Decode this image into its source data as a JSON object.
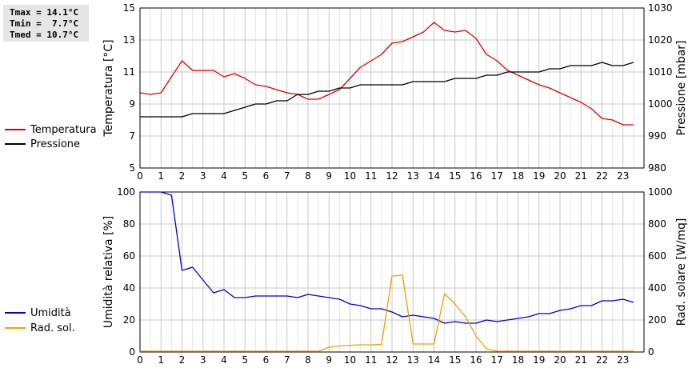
{
  "stats": {
    "tmax": "Tmax = 14.1°C",
    "tmin": "Tmin =  7.7°C",
    "tmed": "Tmed = 10.7°C"
  },
  "colors": {
    "temperature": "#dd0000",
    "pressure": "#000000",
    "humidity": "#0000cc",
    "radiation": "#f0a000",
    "grid": "#c8c8c8"
  },
  "chart_data": [
    {
      "type": "line",
      "xlim": [
        0,
        24
      ],
      "x_ticks": [
        "0",
        "1",
        "2",
        "3",
        "4",
        "5",
        "6",
        "7",
        "8",
        "9",
        "10",
        "11",
        "12",
        "13",
        "14",
        "15",
        "16",
        "17",
        "18",
        "19",
        "20",
        "21",
        "22",
        "23"
      ],
      "ylabel": "Temperatura [°C]",
      "ylim": [
        5,
        15
      ],
      "y_ticks": [
        "5",
        "7",
        "9",
        "11",
        "13",
        "15"
      ],
      "y2label": "Pressione [mbar]",
      "y2lim": [
        980,
        1030
      ],
      "y2_ticks": [
        "980",
        "990",
        "1000",
        "1010",
        "1020",
        "1030"
      ],
      "grid": true,
      "legend_position": "left",
      "series": [
        {
          "name": "Temperatura",
          "axis": "left",
          "x": [
            0,
            0.5,
            1,
            1.5,
            2,
            2.5,
            3,
            3.5,
            4,
            4.5,
            5,
            5.5,
            6,
            6.5,
            7,
            7.5,
            8,
            8.5,
            9,
            9.5,
            10,
            10.5,
            11,
            11.5,
            12,
            12.5,
            13,
            13.5,
            14,
            14.5,
            15,
            15.5,
            16,
            16.5,
            17,
            17.5,
            18,
            18.5,
            19,
            19.5,
            20,
            20.5,
            21,
            21.5,
            22,
            22.5,
            23,
            23.5
          ],
          "values": [
            9.7,
            9.6,
            9.7,
            10.7,
            11.7,
            11.1,
            11.1,
            11.1,
            10.7,
            10.9,
            10.6,
            10.2,
            10.1,
            9.9,
            9.7,
            9.6,
            9.3,
            9.3,
            9.6,
            9.9,
            10.6,
            11.3,
            11.7,
            12.1,
            12.8,
            12.9,
            13.2,
            13.5,
            14.1,
            13.6,
            13.5,
            13.6,
            13.1,
            12.1,
            11.7,
            11.1,
            10.8,
            10.5,
            10.2,
            10.0,
            9.7,
            9.4,
            9.1,
            8.7,
            8.1,
            8.0,
            7.7,
            7.7
          ]
        },
        {
          "name": "Pressione",
          "axis": "right",
          "x": [
            0,
            0.5,
            1,
            1.5,
            2,
            2.5,
            3,
            3.5,
            4,
            4.5,
            5,
            5.5,
            6,
            6.5,
            7,
            7.5,
            8,
            8.5,
            9,
            9.5,
            10,
            10.5,
            11,
            11.5,
            12,
            12.5,
            13,
            13.5,
            14,
            14.5,
            15,
            15.5,
            16,
            16.5,
            17,
            17.5,
            18,
            18.5,
            19,
            19.5,
            20,
            20.5,
            21,
            21.5,
            22,
            22.5,
            23,
            23.5
          ],
          "values": [
            996,
            996,
            996,
            996,
            996,
            997,
            997,
            997,
            997,
            998,
            999,
            1000,
            1000,
            1001,
            1001,
            1003,
            1003,
            1004,
            1004,
            1005,
            1005,
            1006,
            1006,
            1006,
            1006,
            1006,
            1007,
            1007,
            1007,
            1007,
            1008,
            1008,
            1008,
            1009,
            1009,
            1010,
            1010,
            1010,
            1010,
            1011,
            1011,
            1012,
            1012,
            1012,
            1013,
            1012,
            1012,
            1013
          ]
        }
      ]
    },
    {
      "type": "line",
      "xlim": [
        0,
        24
      ],
      "x_ticks": [
        "0",
        "1",
        "2",
        "3",
        "4",
        "5",
        "6",
        "7",
        "8",
        "9",
        "10",
        "11",
        "12",
        "13",
        "14",
        "15",
        "16",
        "17",
        "18",
        "19",
        "20",
        "21",
        "22",
        "23"
      ],
      "ylabel": "Umidità relativa [%]",
      "ylim": [
        0,
        100
      ],
      "y_ticks": [
        "0",
        "20",
        "40",
        "60",
        "80",
        "100"
      ],
      "y2label": "Rad. solare [W/mq]",
      "y2lim": [
        0,
        1000
      ],
      "y2_ticks": [
        "0",
        "200",
        "400",
        "600",
        "800",
        "1000"
      ],
      "grid": true,
      "legend_position": "left",
      "series": [
        {
          "name": "Umidità",
          "axis": "left",
          "x": [
            0,
            0.5,
            1,
            1.5,
            2,
            2.5,
            3,
            3.5,
            4,
            4.5,
            5,
            5.5,
            6,
            6.5,
            7,
            7.5,
            8,
            8.5,
            9,
            9.5,
            10,
            10.5,
            11,
            11.5,
            12,
            12.5,
            13,
            13.5,
            14,
            14.5,
            15,
            15.5,
            16,
            16.5,
            17,
            17.5,
            18,
            18.5,
            19,
            19.5,
            20,
            20.5,
            21,
            21.5,
            22,
            22.5,
            23,
            23.5
          ],
          "values": [
            100,
            100,
            100,
            98,
            51,
            53,
            45,
            37,
            39,
            34,
            34,
            35,
            35,
            35,
            35,
            34,
            36,
            35,
            34,
            33,
            30,
            29,
            27,
            27,
            25,
            22,
            23,
            22,
            21,
            18,
            19,
            18,
            18,
            20,
            19,
            20,
            21,
            22,
            24,
            24,
            26,
            27,
            29,
            29,
            32,
            32,
            33,
            31
          ]
        },
        {
          "name": "Rad. sol.",
          "axis": "right",
          "x": [
            0,
            0.5,
            1,
            1.5,
            2,
            2.5,
            3,
            3.5,
            4,
            4.5,
            5,
            5.5,
            6,
            6.5,
            7,
            7.5,
            8,
            8.5,
            9,
            9.5,
            10,
            10.5,
            11,
            11.5,
            12,
            12.5,
            13,
            13.5,
            14,
            14.5,
            15,
            15.5,
            16,
            16.5,
            17,
            17.5,
            18,
            18.5,
            19,
            19.5,
            20,
            20.5,
            21,
            21.5,
            22,
            22.5,
            23,
            23.5
          ],
          "values": [
            5,
            5,
            5,
            5,
            5,
            5,
            5,
            5,
            5,
            5,
            5,
            5,
            5,
            5,
            5,
            5,
            5,
            5,
            30,
            38,
            42,
            45,
            45,
            48,
            475,
            480,
            50,
            50,
            50,
            365,
            300,
            220,
            100,
            20,
            5,
            5,
            5,
            5,
            5,
            5,
            5,
            5,
            5,
            5,
            5,
            5,
            5,
            5
          ]
        }
      ]
    }
  ]
}
